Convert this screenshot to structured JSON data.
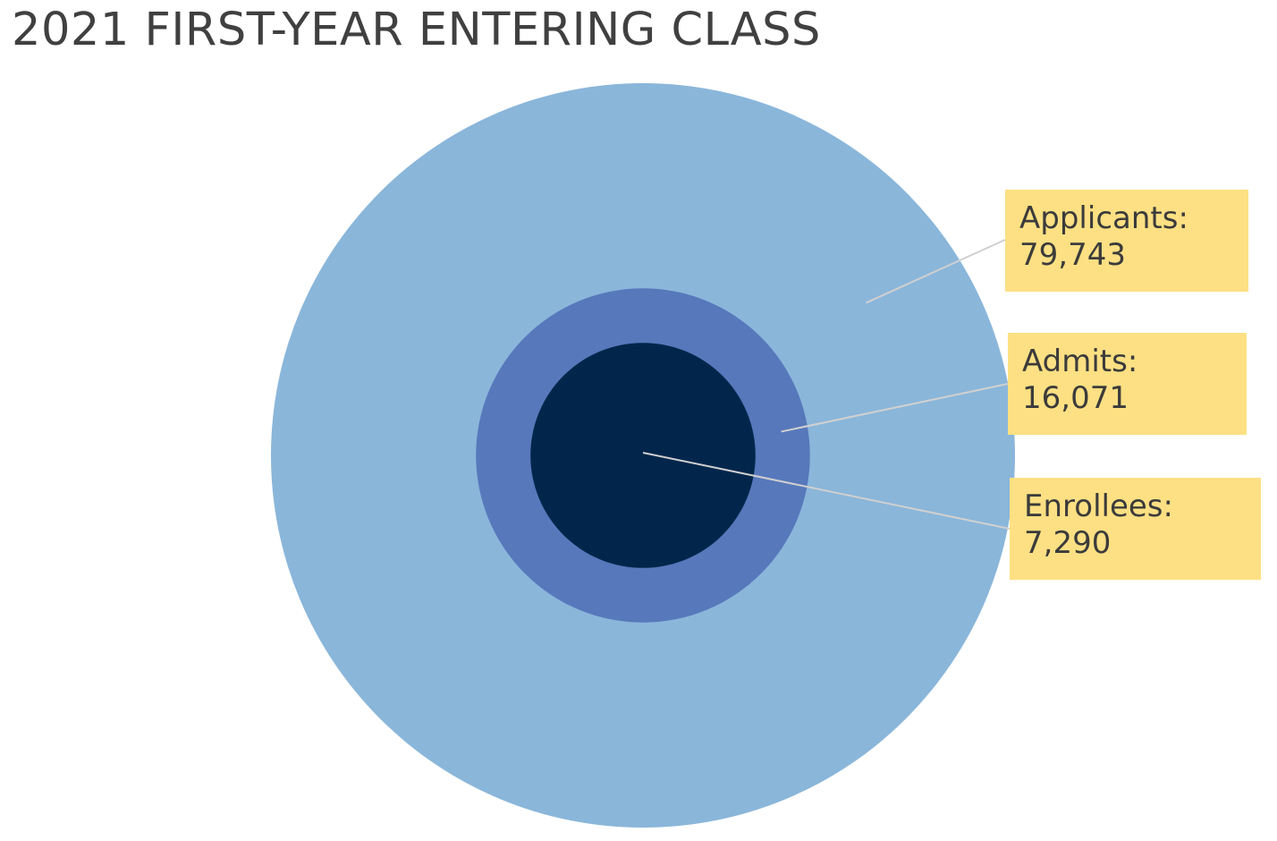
{
  "chart_data": {
    "type": "nested-bubble",
    "title": "2021 FIRST-YEAR ENTERING CLASS",
    "series": [
      {
        "name": "Applicants",
        "value": 79743,
        "label": "Applicants:",
        "value_label": "79,743",
        "color": "#8ab6da"
      },
      {
        "name": "Admits",
        "value": 16071,
        "label": "Admits:",
        "value_label": "16,071",
        "color": "#5778bb"
      },
      {
        "name": "Enrollees",
        "value": 7290,
        "label": "Enrollees:",
        "value_label": "7,290",
        "color": "#02264b"
      }
    ],
    "callout_color": "#fde083",
    "leader_line_color": "#d0d0d0"
  }
}
